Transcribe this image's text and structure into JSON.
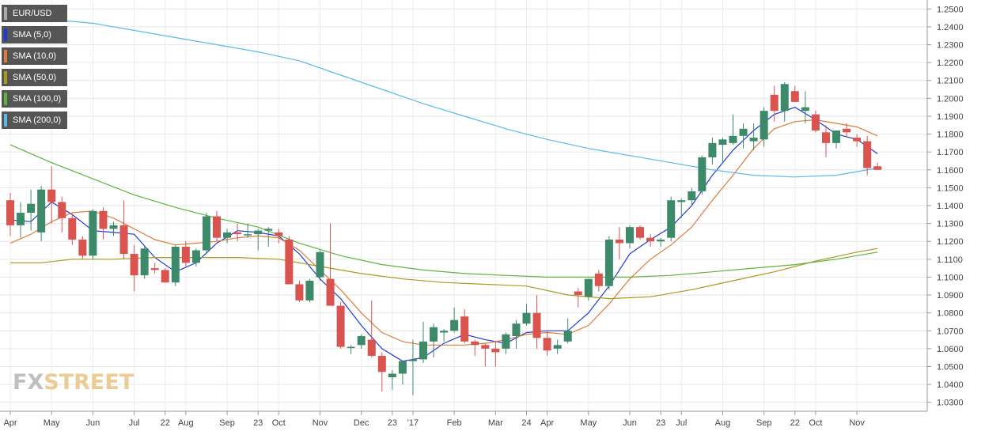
{
  "legend": [
    {
      "label": "EUR/USD",
      "color": "#555555"
    },
    {
      "label": "SMA (5,0)",
      "color": "#1f3bd6"
    },
    {
      "label": "SMA (10,0)",
      "color": "#e07b39"
    },
    {
      "label": "SMA (50,0)",
      "color": "#a89a1e"
    },
    {
      "label": "SMA (100,0)",
      "color": "#5fb33a"
    },
    {
      "label": "SMA (200,0)",
      "color": "#5ab9ea"
    }
  ],
  "logo": {
    "part1": "FX",
    "part2": "STREET"
  },
  "chart_data": {
    "type": "candlestick",
    "ylim": [
      1.025,
      1.255
    ],
    "y_ticks": [
      1.03,
      1.04,
      1.05,
      1.06,
      1.07,
      1.08,
      1.09,
      1.1,
      1.11,
      1.12,
      1.13,
      1.14,
      1.15,
      1.16,
      1.17,
      1.18,
      1.19,
      1.2,
      1.21,
      1.22,
      1.23,
      1.24,
      1.25
    ],
    "y_tick_labels": [
      "1.0300",
      "1.0400",
      "1.0500",
      "1.0600",
      "1.0700",
      "1.0800",
      "1.0900",
      "1.1000",
      "1.1100",
      "1.1200",
      "1.1300",
      "1.1400",
      "1.1500",
      "1.1600",
      "1.1700",
      "1.1800",
      "1.1900",
      "1.2000",
      "1.2100",
      "1.2200",
      "1.2300",
      "1.2400",
      "1.2500"
    ],
    "x_tick_labels": [
      "Apr",
      "May",
      "Jun",
      "Jul",
      "22",
      "Aug",
      "Sep",
      "23",
      "Oct",
      "Nov",
      "Dec",
      "23",
      "'17",
      "Feb",
      "Mar",
      "24",
      "Apr",
      "May",
      "Jun",
      "23",
      "Jul",
      "Aug",
      "Sep",
      "22",
      "Oct",
      "Nov"
    ],
    "x_tick_index": [
      0,
      4,
      8,
      12,
      15,
      17,
      21,
      24,
      26,
      30,
      34,
      37,
      39,
      43,
      47,
      50,
      52,
      56,
      60,
      63,
      65,
      69,
      73,
      76,
      78,
      82
    ],
    "bull_color": "#3d8a6b",
    "bear_color": "#d9534f",
    "candles": [
      [
        1.143,
        1.147,
        1.123,
        1.129
      ],
      [
        1.129,
        1.142,
        1.122,
        1.136
      ],
      [
        1.136,
        1.149,
        1.126,
        1.141
      ],
      [
        1.125,
        1.151,
        1.12,
        1.149
      ],
      [
        1.149,
        1.162,
        1.13,
        1.142
      ],
      [
        1.142,
        1.145,
        1.125,
        1.133
      ],
      [
        1.133,
        1.135,
        1.118,
        1.121
      ],
      [
        1.121,
        1.123,
        1.11,
        1.112
      ],
      [
        1.112,
        1.138,
        1.11,
        1.137
      ],
      [
        1.137,
        1.139,
        1.121,
        1.127
      ],
      [
        1.127,
        1.131,
        1.123,
        1.129
      ],
      [
        1.129,
        1.143,
        1.11,
        1.113
      ],
      [
        1.113,
        1.118,
        1.092,
        1.101
      ],
      [
        1.101,
        1.117,
        1.099,
        1.116
      ],
      [
        1.105,
        1.108,
        1.102,
        1.104
      ],
      [
        1.104,
        1.105,
        1.097,
        1.097
      ],
      [
        1.097,
        1.118,
        1.095,
        1.117
      ],
      [
        1.117,
        1.12,
        1.106,
        1.108
      ],
      [
        1.108,
        1.116,
        1.106,
        1.115
      ],
      [
        1.115,
        1.136,
        1.113,
        1.134
      ],
      [
        1.134,
        1.137,
        1.12,
        1.122
      ],
      [
        1.122,
        1.127,
        1.119,
        1.125
      ],
      [
        1.125,
        1.13,
        1.12,
        1.124
      ],
      [
        1.124,
        1.13,
        1.122,
        1.124
      ],
      [
        1.124,
        1.127,
        1.115,
        1.126
      ],
      [
        1.126,
        1.128,
        1.117,
        1.127
      ],
      [
        1.125,
        1.127,
        1.119,
        1.123
      ],
      [
        1.121,
        1.123,
        1.097,
        1.096
      ],
      [
        1.096,
        1.098,
        1.086,
        1.087
      ],
      [
        1.087,
        1.099,
        1.086,
        1.098
      ],
      [
        1.1,
        1.115,
        1.098,
        1.114
      ],
      [
        1.099,
        1.13,
        1.084,
        1.084
      ],
      [
        1.084,
        1.086,
        1.06,
        1.061
      ],
      [
        1.061,
        1.062,
        1.057,
        1.061
      ],
      [
        1.062,
        1.068,
        1.06,
        1.067
      ],
      [
        1.065,
        1.087,
        1.055,
        1.056
      ],
      [
        1.056,
        1.058,
        1.036,
        1.047
      ],
      [
        1.044,
        1.048,
        1.037,
        1.046
      ],
      [
        1.046,
        1.053,
        1.04,
        1.053
      ],
      [
        1.053,
        1.065,
        1.034,
        1.054
      ],
      [
        1.054,
        1.075,
        1.052,
        1.064
      ],
      [
        1.064,
        1.074,
        1.055,
        1.072
      ],
      [
        1.069,
        1.071,
        1.064,
        1.07
      ],
      [
        1.07,
        1.083,
        1.069,
        1.076
      ],
      [
        1.078,
        1.082,
        1.063,
        1.064
      ],
      [
        1.064,
        1.065,
        1.056,
        1.062
      ],
      [
        1.062,
        1.063,
        1.05,
        1.06
      ],
      [
        1.06,
        1.064,
        1.05,
        1.058
      ],
      [
        1.06,
        1.069,
        1.057,
        1.068
      ],
      [
        1.067,
        1.076,
        1.06,
        1.074
      ],
      [
        1.074,
        1.085,
        1.073,
        1.08
      ],
      [
        1.08,
        1.09,
        1.06,
        1.066
      ],
      [
        1.066,
        1.07,
        1.056,
        1.059
      ],
      [
        1.06,
        1.065,
        1.057,
        1.062
      ],
      [
        1.064,
        1.077,
        1.063,
        1.07
      ],
      [
        1.092,
        1.094,
        1.083,
        1.09
      ],
      [
        1.089,
        1.099,
        1.087,
        1.099
      ],
      [
        1.102,
        1.104,
        1.092,
        1.095
      ],
      [
        1.095,
        1.123,
        1.093,
        1.121
      ],
      [
        1.121,
        1.128,
        1.11,
        1.119
      ],
      [
        1.119,
        1.129,
        1.116,
        1.128
      ],
      [
        1.128,
        1.129,
        1.121,
        1.122
      ],
      [
        1.122,
        1.124,
        1.117,
        1.12
      ],
      [
        1.12,
        1.122,
        1.117,
        1.121
      ],
      [
        1.122,
        1.145,
        1.12,
        1.143
      ],
      [
        1.142,
        1.144,
        1.133,
        1.143
      ],
      [
        1.143,
        1.15,
        1.14,
        1.148
      ],
      [
        1.148,
        1.168,
        1.146,
        1.167
      ],
      [
        1.167,
        1.178,
        1.163,
        1.175
      ],
      [
        1.174,
        1.178,
        1.164,
        1.177
      ],
      [
        1.175,
        1.191,
        1.174,
        1.179
      ],
      [
        1.179,
        1.186,
        1.172,
        1.183
      ],
      [
        1.176,
        1.186,
        1.171,
        1.178
      ],
      [
        1.177,
        1.195,
        1.173,
        1.193
      ],
      [
        1.202,
        1.207,
        1.187,
        1.193
      ],
      [
        1.193,
        1.209,
        1.187,
        1.208
      ],
      [
        1.204,
        1.207,
        1.198,
        1.198
      ],
      [
        1.193,
        1.204,
        1.186,
        1.195
      ],
      [
        1.191,
        1.193,
        1.181,
        1.182
      ],
      [
        1.181,
        1.185,
        1.167,
        1.175
      ],
      [
        1.175,
        1.18,
        1.172,
        1.182
      ],
      [
        1.183,
        1.186,
        1.178,
        1.181
      ],
      [
        1.178,
        1.18,
        1.173,
        1.176
      ],
      [
        1.176,
        1.179,
        1.157,
        1.161
      ],
      [
        1.162,
        1.164,
        1.16,
        1.16
      ]
    ],
    "sma": [
      {
        "name": "SMA (5,0)",
        "color": "#1f3bd6",
        "points": [
          [
            0,
            1.132
          ],
          [
            2,
            1.131
          ],
          [
            4,
            1.142
          ],
          [
            6,
            1.135
          ],
          [
            8,
            1.126
          ],
          [
            10,
            1.125
          ],
          [
            12,
            1.124
          ],
          [
            14,
            1.111
          ],
          [
            16,
            1.103
          ],
          [
            18,
            1.108
          ],
          [
            20,
            1.119
          ],
          [
            22,
            1.126
          ],
          [
            24,
            1.125
          ],
          [
            26,
            1.123
          ],
          [
            28,
            1.113
          ],
          [
            30,
            1.099
          ],
          [
            32,
            1.088
          ],
          [
            34,
            1.073
          ],
          [
            36,
            1.06
          ],
          [
            38,
            1.053
          ],
          [
            40,
            1.055
          ],
          [
            42,
            1.063
          ],
          [
            44,
            1.068
          ],
          [
            46,
            1.065
          ],
          [
            48,
            1.063
          ],
          [
            50,
            1.069
          ],
          [
            52,
            1.07
          ],
          [
            54,
            1.07
          ],
          [
            56,
            1.08
          ],
          [
            58,
            1.095
          ],
          [
            60,
            1.113
          ],
          [
            62,
            1.121
          ],
          [
            64,
            1.128
          ],
          [
            66,
            1.14
          ],
          [
            68,
            1.157
          ],
          [
            70,
            1.171
          ],
          [
            72,
            1.182
          ],
          [
            74,
            1.191
          ],
          [
            76,
            1.195
          ],
          [
            78,
            1.188
          ],
          [
            80,
            1.18
          ],
          [
            82,
            1.177
          ],
          [
            84,
            1.169
          ]
        ]
      },
      {
        "name": "SMA (10,0)",
        "color": "#e07b39",
        "points": [
          [
            0,
            1.119
          ],
          [
            2,
            1.124
          ],
          [
            4,
            1.131
          ],
          [
            6,
            1.136
          ],
          [
            8,
            1.137
          ],
          [
            10,
            1.133
          ],
          [
            12,
            1.127
          ],
          [
            14,
            1.121
          ],
          [
            16,
            1.118
          ],
          [
            18,
            1.119
          ],
          [
            20,
            1.12
          ],
          [
            22,
            1.122
          ],
          [
            24,
            1.123
          ],
          [
            26,
            1.122
          ],
          [
            28,
            1.115
          ],
          [
            30,
            1.104
          ],
          [
            32,
            1.093
          ],
          [
            34,
            1.08
          ],
          [
            36,
            1.069
          ],
          [
            38,
            1.064
          ],
          [
            40,
            1.062
          ],
          [
            42,
            1.062
          ],
          [
            44,
            1.062
          ],
          [
            46,
            1.063
          ],
          [
            48,
            1.065
          ],
          [
            50,
            1.068
          ],
          [
            52,
            1.069
          ],
          [
            54,
            1.068
          ],
          [
            56,
            1.073
          ],
          [
            58,
            1.085
          ],
          [
            60,
            1.099
          ],
          [
            62,
            1.11
          ],
          [
            64,
            1.118
          ],
          [
            66,
            1.128
          ],
          [
            68,
            1.143
          ],
          [
            70,
            1.157
          ],
          [
            72,
            1.172
          ],
          [
            74,
            1.183
          ],
          [
            76,
            1.187
          ],
          [
            78,
            1.188
          ],
          [
            80,
            1.186
          ],
          [
            82,
            1.184
          ],
          [
            84,
            1.179
          ]
        ]
      },
      {
        "name": "SMA (50,0)",
        "color": "#a89a1e",
        "points": [
          [
            0,
            1.108
          ],
          [
            3,
            1.108
          ],
          [
            6,
            1.11
          ],
          [
            10,
            1.11
          ],
          [
            14,
            1.111
          ],
          [
            18,
            1.111
          ],
          [
            22,
            1.111
          ],
          [
            26,
            1.11
          ],
          [
            30,
            1.106
          ],
          [
            34,
            1.102
          ],
          [
            38,
            1.099
          ],
          [
            42,
            1.097
          ],
          [
            46,
            1.096
          ],
          [
            50,
            1.095
          ],
          [
            54,
            1.09
          ],
          [
            58,
            1.088
          ],
          [
            62,
            1.089
          ],
          [
            66,
            1.093
          ],
          [
            70,
            1.098
          ],
          [
            74,
            1.103
          ],
          [
            78,
            1.109
          ],
          [
            82,
            1.114
          ],
          [
            84,
            1.116
          ]
        ]
      },
      {
        "name": "SMA (100,0)",
        "color": "#5fb33a",
        "points": [
          [
            0,
            1.174
          ],
          [
            4,
            1.164
          ],
          [
            8,
            1.155
          ],
          [
            12,
            1.146
          ],
          [
            16,
            1.139
          ],
          [
            20,
            1.133
          ],
          [
            24,
            1.128
          ],
          [
            28,
            1.119
          ],
          [
            32,
            1.112
          ],
          [
            36,
            1.107
          ],
          [
            40,
            1.104
          ],
          [
            44,
            1.102
          ],
          [
            48,
            1.101
          ],
          [
            52,
            1.1
          ],
          [
            56,
            1.1
          ],
          [
            60,
            1.1
          ],
          [
            64,
            1.101
          ],
          [
            68,
            1.103
          ],
          [
            72,
            1.105
          ],
          [
            76,
            1.107
          ],
          [
            80,
            1.11
          ],
          [
            84,
            1.114
          ]
        ]
      },
      {
        "name": "SMA (200,0)",
        "color": "#5ab9ea",
        "points": [
          [
            0,
            1.246
          ],
          [
            4,
            1.244
          ],
          [
            8,
            1.242
          ],
          [
            12,
            1.238
          ],
          [
            16,
            1.234
          ],
          [
            20,
            1.23
          ],
          [
            24,
            1.226
          ],
          [
            28,
            1.221
          ],
          [
            32,
            1.213
          ],
          [
            36,
            1.205
          ],
          [
            40,
            1.197
          ],
          [
            44,
            1.19
          ],
          [
            48,
            1.183
          ],
          [
            52,
            1.177
          ],
          [
            56,
            1.172
          ],
          [
            60,
            1.168
          ],
          [
            64,
            1.164
          ],
          [
            68,
            1.16
          ],
          [
            72,
            1.157
          ],
          [
            76,
            1.156
          ],
          [
            80,
            1.157
          ],
          [
            84,
            1.161
          ]
        ]
      }
    ]
  }
}
